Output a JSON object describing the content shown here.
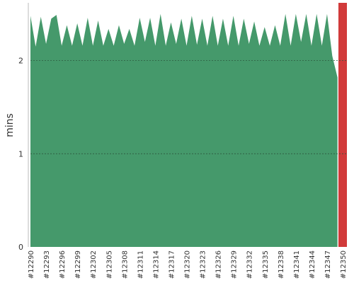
{
  "chart_data": {
    "type": "area",
    "y_label": "mins",
    "categories": [
      "#12290",
      null,
      null,
      "#12293",
      null,
      null,
      "#12296",
      null,
      null,
      "#12299",
      null,
      null,
      "#12302",
      null,
      null,
      "#12305",
      null,
      null,
      "#12308",
      null,
      null,
      "#12311",
      null,
      null,
      "#12314",
      null,
      null,
      "#12317",
      null,
      null,
      "#12320",
      null,
      null,
      "#12323",
      null,
      null,
      "#12326",
      null,
      null,
      "#12329",
      null,
      null,
      "#12332",
      null,
      null,
      "#12335",
      null,
      null,
      "#12338",
      null,
      null,
      "#12341",
      null,
      null,
      "#12344",
      null,
      null,
      "#12347",
      null,
      null,
      "#12350"
    ],
    "series": [
      {
        "color": "#45996b",
        "values": [
          2.48,
          2.15,
          2.47,
          2.18,
          2.45,
          2.49,
          2.16,
          2.38,
          2.16,
          2.4,
          2.16,
          2.46,
          2.16,
          2.43,
          2.16,
          2.34,
          2.16,
          2.38,
          2.18,
          2.34,
          2.16,
          2.46,
          2.2,
          2.46,
          2.16,
          2.5,
          2.16,
          2.41,
          2.18,
          2.45,
          2.16,
          2.48,
          2.17,
          2.45,
          2.16,
          2.48,
          2.16,
          2.45,
          2.16,
          2.48,
          2.16,
          2.45,
          2.18,
          2.42,
          2.16,
          2.36,
          2.16,
          2.38,
          2.16,
          2.5,
          2.16,
          2.5,
          2.2,
          2.5,
          2.16,
          2.5,
          2.16,
          2.5,
          2.05,
          1.82,
          null
        ]
      },
      {
        "color": "#d13a3a",
        "values": [
          null,
          null,
          null,
          null,
          null,
          null,
          null,
          null,
          null,
          null,
          null,
          null,
          null,
          null,
          null,
          null,
          null,
          null,
          null,
          null,
          null,
          null,
          null,
          null,
          null,
          null,
          null,
          null,
          null,
          null,
          null,
          null,
          null,
          null,
          null,
          null,
          null,
          null,
          null,
          null,
          null,
          null,
          null,
          null,
          null,
          null,
          null,
          null,
          null,
          null,
          null,
          null,
          null,
          null,
          null,
          null,
          null,
          null,
          null,
          null,
          2.62
        ]
      }
    ],
    "ylim": [
      0,
      2.62
    ],
    "yticks": [
      0,
      1,
      2
    ],
    "grid": true
  }
}
